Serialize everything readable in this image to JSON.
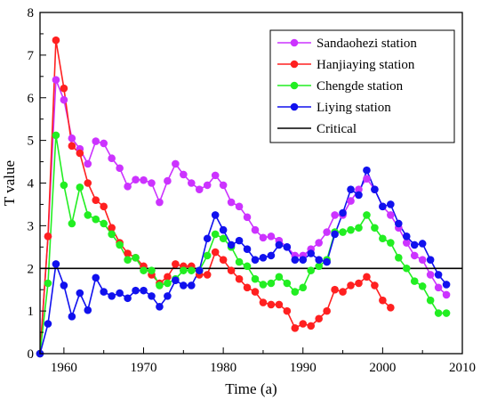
{
  "chart_data": {
    "type": "line",
    "title": "",
    "xlabel": "Time (a)",
    "ylabel": "T value",
    "xlim": [
      1957,
      2010
    ],
    "ylim": [
      0,
      8
    ],
    "xticks": [
      "1960",
      "1970",
      "1980",
      "1990",
      "2000",
      "2010"
    ],
    "yticks": [
      "0",
      "1",
      "2",
      "3",
      "4",
      "5",
      "6",
      "7",
      "8"
    ],
    "grid": false,
    "legend_position": "top-right",
    "series": [
      {
        "name": "Sandaohezi station",
        "color": "#cc33ff",
        "x": [
          1957,
          1958,
          1959,
          1960,
          1961,
          1962,
          1963,
          1964,
          1965,
          1966,
          1967,
          1968,
          1969,
          1970,
          1971,
          1972,
          1973,
          1974,
          1975,
          1976,
          1977,
          1978,
          1979,
          1980,
          1981,
          1982,
          1983,
          1984,
          1985,
          1986,
          1987,
          1988,
          1989,
          1990,
          1991,
          1992,
          1993,
          1994,
          1995,
          1996,
          1997,
          1998,
          1999,
          2000,
          2001,
          2002,
          2003,
          2004,
          2005,
          2006,
          2007,
          2008
        ],
        "y": [
          0,
          2.75,
          6.42,
          5.95,
          5.05,
          4.8,
          4.45,
          4.98,
          4.93,
          4.58,
          4.35,
          3.92,
          4.08,
          4.07,
          4.0,
          3.55,
          4.05,
          4.45,
          4.2,
          4.0,
          3.85,
          3.95,
          4.18,
          3.95,
          3.55,
          3.45,
          3.2,
          2.9,
          2.72,
          2.75,
          2.65,
          2.5,
          2.3,
          2.3,
          2.45,
          2.6,
          2.85,
          3.25,
          3.25,
          3.58,
          3.85,
          4.1,
          3.85,
          3.45,
          3.25,
          2.95,
          2.6,
          2.3,
          2.2,
          1.85,
          1.55,
          1.38
        ]
      },
      {
        "name": "Hanjiaying station",
        "color": "#ff2020",
        "x": [
          1957,
          1958,
          1959,
          1960,
          1961,
          1962,
          1963,
          1964,
          1965,
          1966,
          1967,
          1968,
          1969,
          1970,
          1971,
          1972,
          1973,
          1974,
          1975,
          1976,
          1977,
          1978,
          1979,
          1980,
          1981,
          1982,
          1983,
          1984,
          1985,
          1986,
          1987,
          1988,
          1989,
          1990,
          1991,
          1992,
          1993,
          1994,
          1995,
          1996,
          1997,
          1998,
          1999,
          2000,
          2001
        ],
        "y": [
          0,
          2.75,
          7.35,
          6.22,
          4.87,
          4.7,
          4.0,
          3.6,
          3.45,
          2.95,
          2.6,
          2.35,
          2.25,
          2.05,
          1.85,
          1.65,
          1.8,
          2.1,
          2.05,
          2.05,
          1.85,
          1.85,
          2.38,
          2.2,
          1.95,
          1.75,
          1.55,
          1.45,
          1.2,
          1.15,
          1.15,
          1.0,
          0.6,
          0.7,
          0.65,
          0.82,
          1.0,
          1.5,
          1.45,
          1.6,
          1.65,
          1.8,
          1.6,
          1.25,
          1.08
        ]
      },
      {
        "name": "Chengde station",
        "color": "#22ee22",
        "x": [
          1957,
          1958,
          1959,
          1960,
          1961,
          1962,
          1963,
          1964,
          1965,
          1966,
          1967,
          1968,
          1969,
          1970,
          1971,
          1972,
          1973,
          1974,
          1975,
          1976,
          1977,
          1978,
          1979,
          1980,
          1981,
          1982,
          1983,
          1984,
          1985,
          1986,
          1987,
          1988,
          1989,
          1990,
          1991,
          1992,
          1993,
          1994,
          1995,
          1996,
          1997,
          1998,
          1999,
          2000,
          2001,
          2002,
          2003,
          2004,
          2005,
          2006,
          2007,
          2008
        ],
        "y": [
          0,
          1.65,
          5.12,
          3.95,
          3.05,
          3.9,
          3.25,
          3.15,
          3.05,
          2.8,
          2.55,
          2.2,
          2.25,
          1.95,
          1.95,
          1.6,
          1.65,
          1.75,
          1.95,
          1.95,
          1.95,
          2.3,
          2.8,
          2.7,
          2.5,
          2.15,
          2.05,
          1.75,
          1.62,
          1.65,
          1.8,
          1.65,
          1.45,
          1.55,
          1.95,
          2.05,
          2.2,
          2.85,
          2.85,
          2.9,
          2.95,
          3.25,
          2.95,
          2.7,
          2.6,
          2.25,
          2.0,
          1.7,
          1.58,
          1.25,
          0.95,
          0.95
        ]
      },
      {
        "name": "Liying station",
        "color": "#1111ee",
        "x": [
          1957,
          1958,
          1959,
          1960,
          1961,
          1962,
          1963,
          1964,
          1965,
          1966,
          1967,
          1968,
          1969,
          1970,
          1971,
          1972,
          1973,
          1974,
          1975,
          1976,
          1977,
          1978,
          1979,
          1980,
          1981,
          1982,
          1983,
          1984,
          1985,
          1986,
          1987,
          1988,
          1989,
          1990,
          1991,
          1992,
          1993,
          1994,
          1995,
          1996,
          1997,
          1998,
          1999,
          2000,
          2001,
          2002,
          2003,
          2004,
          2005,
          2006,
          2007,
          2008
        ],
        "y": [
          0,
          0.7,
          2.1,
          1.6,
          0.87,
          1.42,
          1.02,
          1.78,
          1.45,
          1.35,
          1.42,
          1.3,
          1.48,
          1.48,
          1.35,
          1.1,
          1.35,
          1.72,
          1.6,
          1.6,
          1.95,
          2.7,
          3.25,
          2.9,
          2.55,
          2.65,
          2.45,
          2.2,
          2.25,
          2.3,
          2.55,
          2.5,
          2.2,
          2.2,
          2.35,
          2.2,
          2.15,
          2.8,
          3.3,
          3.85,
          3.72,
          4.3,
          3.85,
          3.45,
          3.5,
          3.05,
          2.75,
          2.55,
          2.58,
          2.2,
          1.85,
          1.62
        ]
      },
      {
        "name": "Critical",
        "color": "#000000",
        "x": [
          1957,
          2010
        ],
        "y": [
          2,
          2
        ]
      }
    ]
  }
}
